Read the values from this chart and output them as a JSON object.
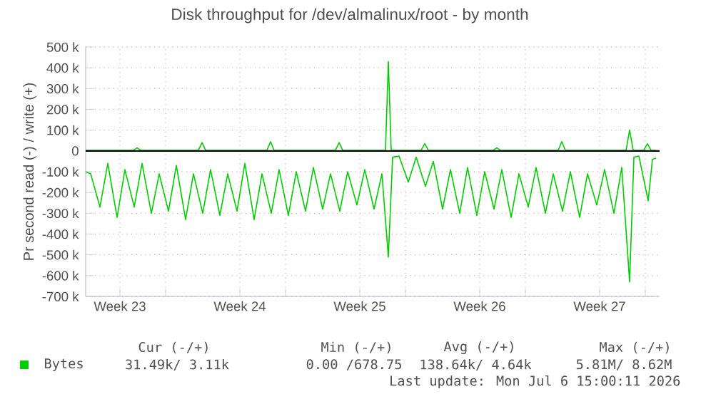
{
  "chart_data": {
    "type": "line",
    "title": "Disk throughput for /dev/almalinux/root - by month",
    "ylabel": "Pr second read (-) / write (+)",
    "x": [
      "2026-06-03T08:00",
      "2026-06-03T15:00",
      "2026-06-04T04:00",
      "2026-06-04T15:00",
      "2026-06-05T04:00",
      "2026-06-05T15:00",
      "2026-06-06T04:00",
      "2026-06-06T15:00",
      "2026-06-07T04:00",
      "2026-06-07T15:00",
      "2026-06-08T04:00",
      "2026-06-08T15:00",
      "2026-06-09T04:00",
      "2026-06-09T15:00",
      "2026-06-10T04:00",
      "2026-06-10T15:00",
      "2026-06-11T04:00",
      "2026-06-11T15:00",
      "2026-06-12T04:00",
      "2026-06-12T15:00",
      "2026-06-13T04:00",
      "2026-06-13T15:00",
      "2026-06-14T04:00",
      "2026-06-14T15:00",
      "2026-06-15T04:00",
      "2026-06-15T15:00",
      "2026-06-16T04:00",
      "2026-06-16T15:00",
      "2026-06-17T04:00",
      "2026-06-17T15:00",
      "2026-06-18T04:00",
      "2026-06-18T15:00",
      "2026-06-19T04:00",
      "2026-06-19T15:00",
      "2026-06-20T04:00",
      "2026-06-20T15:00",
      "2026-06-21T00:00",
      "2026-06-21T06:00",
      "2026-06-21T15:00",
      "2026-06-22T04:00",
      "2026-06-22T15:00",
      "2026-06-23T04:00",
      "2026-06-23T15:00",
      "2026-06-24T04:00",
      "2026-06-24T15:00",
      "2026-06-25T04:00",
      "2026-06-25T15:00",
      "2026-06-26T04:00",
      "2026-06-26T15:00",
      "2026-06-27T04:00",
      "2026-06-27T15:00",
      "2026-06-28T04:00",
      "2026-06-28T15:00",
      "2026-06-29T04:00",
      "2026-06-29T15:00",
      "2026-06-30T04:00",
      "2026-06-30T15:00",
      "2026-07-01T04:00",
      "2026-07-01T15:00",
      "2026-07-02T04:00",
      "2026-07-02T15:00",
      "2026-07-03T04:00",
      "2026-07-03T15:00",
      "2026-07-04T04:00",
      "2026-07-04T15:00",
      "2026-07-05T02:00",
      "2026-07-05T08:00",
      "2026-07-05T15:00",
      "2026-07-06T04:00",
      "2026-07-06T10:00",
      "2026-07-06T15:00"
    ],
    "series": [
      {
        "name": "Bytes",
        "color": "#00cc00",
        "values": [
          -100000,
          -110000,
          -270000,
          -60000,
          -320000,
          -90000,
          -270000,
          -60000,
          -300000,
          -110000,
          -290000,
          -70000,
          -330000,
          -110000,
          -300000,
          -90000,
          -310000,
          -110000,
          -290000,
          -60000,
          -330000,
          -110000,
          -300000,
          -90000,
          -310000,
          -100000,
          -290000,
          -80000,
          -280000,
          -110000,
          -290000,
          -100000,
          -260000,
          -90000,
          -280000,
          -110000,
          -510000,
          -30000,
          -25000,
          -150000,
          -30000,
          -170000,
          -50000,
          -280000,
          -90000,
          -300000,
          -80000,
          -310000,
          -100000,
          -280000,
          -90000,
          -320000,
          -110000,
          -270000,
          -80000,
          -300000,
          -110000,
          -290000,
          -100000,
          -320000,
          -110000,
          -260000,
          -90000,
          -300000,
          -80000,
          -630000,
          -30000,
          -25000,
          -240000,
          -40000,
          -35000
        ]
      },
      {
        "color": "#00cc00",
        "x": [
          "2026-06-03T08:00",
          "2026-06-06T03:00",
          "2026-06-06T08:00",
          "2026-06-06T13:00",
          "2026-06-09T22:00",
          "2026-06-10T03:00",
          "2026-06-10T08:00",
          "2026-06-13T22:00",
          "2026-06-14T03:00",
          "2026-06-14T08:00",
          "2026-06-17T22:00",
          "2026-06-18T03:00",
          "2026-06-18T08:00",
          "2026-06-20T20:00",
          "2026-06-21T00:00",
          "2026-06-21T04:00",
          "2026-06-22T22:00",
          "2026-06-23T03:00",
          "2026-06-23T08:00",
          "2026-06-27T03:00",
          "2026-06-27T08:00",
          "2026-06-27T13:00",
          "2026-06-30T22:00",
          "2026-07-01T03:00",
          "2026-07-01T08:00",
          "2026-07-04T21:00",
          "2026-07-05T02:00",
          "2026-07-05T07:00",
          "2026-07-05T22:00",
          "2026-07-06T03:00",
          "2026-07-06T08:00",
          "2026-07-06T15:00"
        ],
        "values": [
          3000,
          3000,
          15000,
          3000,
          3000,
          40000,
          3000,
          3000,
          45000,
          3000,
          3000,
          40000,
          3000,
          3000,
          430000,
          3000,
          3000,
          35000,
          3000,
          3000,
          15000,
          3000,
          3000,
          45000,
          3000,
          3000,
          100000,
          3000,
          3000,
          35000,
          3000,
          3000
        ]
      }
    ],
    "xlim": [
      "2026-06-03T08:00",
      "2026-07-06T20:00"
    ],
    "xticks": [
      {
        "value": "2026-06-05T08:00",
        "label": "Week 23"
      },
      {
        "value": "2026-06-08",
        "label": null
      },
      {
        "value": "2026-06-12T08:00",
        "label": "Week 24"
      },
      {
        "value": "2026-06-15",
        "label": null
      },
      {
        "value": "2026-06-19T08:00",
        "label": "Week 25"
      },
      {
        "value": "2026-06-22",
        "label": null
      },
      {
        "value": "2026-06-26T08:00",
        "label": "Week 26"
      },
      {
        "value": "2026-06-29",
        "label": null
      },
      {
        "value": "2026-07-03T08:00",
        "label": "Week 27"
      },
      {
        "value": "2026-07-06",
        "label": null
      }
    ],
    "ylim": [
      -700000,
      500000
    ],
    "yticks": [
      {
        "value": -700000,
        "label": "-700 k"
      },
      {
        "value": -600000,
        "label": "-600 k"
      },
      {
        "value": -500000,
        "label": "-500 k"
      },
      {
        "value": -400000,
        "label": "-400 k"
      },
      {
        "value": -300000,
        "label": "-300 k"
      },
      {
        "value": -200000,
        "label": "-200 k"
      },
      {
        "value": -100000,
        "label": "-100 k"
      },
      0,
      {
        "value": 100000,
        "label": "100 k"
      },
      {
        "value": 200000,
        "label": "200 k"
      },
      {
        "value": 300000,
        "label": "300 k"
      },
      {
        "value": 400000,
        "label": "400 k"
      },
      {
        "value": 500000,
        "label": "500 k"
      }
    ],
    "grid": true,
    "legend": "bottom",
    "ref_lines": [
      {
        "axis": "y",
        "value": 0,
        "color": "#000000"
      }
    ],
    "annotations": [
      "Cur (-/+)",
      "Min (-/+)",
      "Avg (-/+)",
      "Max (-/+)",
      "31.49k/  3.11k",
      "0.00 /678.75",
      "138.64k/  4.64k",
      "5.81M/  8.62M",
      "Last update: Mon Jul  6 15:00:11 2026"
    ]
  }
}
